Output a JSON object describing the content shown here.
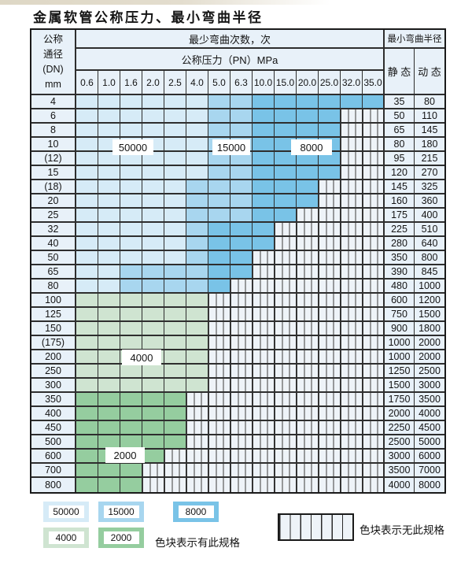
{
  "title": "金属软管公称压力、最小弯曲半径",
  "header": {
    "dn_lines": [
      "公称",
      "通径",
      "(DN)",
      "mm"
    ],
    "bend_cycles": "最少弯曲次数，次",
    "pressure": "公称压力（PN）MPa",
    "radius": "最小弯曲半径",
    "static": "静 态",
    "dynamic": "动 态",
    "pressures": [
      "0.6",
      "1.0",
      "1.6",
      "2.0",
      "2.5",
      "4.0",
      "5.0",
      "6.3",
      "10.0",
      "15.0",
      "20.0",
      "25.0",
      "32.0",
      "35.0"
    ]
  },
  "pattern_key": {
    "L": "50000",
    "M": "15000",
    "D": "8000",
    "G": "4000",
    "g": "2000",
    "X": "no-spec"
  },
  "spec_colors": {
    "50000": "#d6ebf7",
    "15000": "#a8d6ef",
    "8000": "#79c3e7",
    "4000": "#cfe4d1",
    "2000": "#95cd9f",
    "none_bg": "#eef3f8"
  },
  "rows": [
    {
      "dn": "4",
      "pattern": "LLLLLLMMDDDDDD",
      "static": "35",
      "dynamic": "80"
    },
    {
      "dn": "6",
      "pattern": "LLLLLLMMDDDDXX",
      "static": "50",
      "dynamic": "110"
    },
    {
      "dn": "8",
      "pattern": "LLLLLLMMDDDDXX",
      "static": "65",
      "dynamic": "145"
    },
    {
      "dn": "10",
      "pattern": "LLLLLLMMDDDDXX",
      "static": "80",
      "dynamic": "180"
    },
    {
      "dn": "(12)",
      "pattern": "LLLLLLMMDDDDXX",
      "static": "95",
      "dynamic": "215"
    },
    {
      "dn": "15",
      "pattern": "LLLLLLMMDDDDXX",
      "static": "120",
      "dynamic": "270"
    },
    {
      "dn": "(18)",
      "pattern": "LLLLLMMMDDDXXX",
      "static": "145",
      "dynamic": "325"
    },
    {
      "dn": "20",
      "pattern": "LLLLLMMMDDDXXX",
      "static": "160",
      "dynamic": "360"
    },
    {
      "dn": "25",
      "pattern": "LLLLLMMMDDXXXX",
      "static": "175",
      "dynamic": "400"
    },
    {
      "dn": "32",
      "pattern": "LLLLLMDDDXXXXX",
      "static": "225",
      "dynamic": "510"
    },
    {
      "dn": "40",
      "pattern": "LLLLLMDDDXXXXX",
      "static": "280",
      "dynamic": "640"
    },
    {
      "dn": "50",
      "pattern": "LLLLLMDDXXXXXX",
      "static": "350",
      "dynamic": "800"
    },
    {
      "dn": "65",
      "pattern": "LLMMMMDDXXXXXX",
      "static": "390",
      "dynamic": "845"
    },
    {
      "dn": "80",
      "pattern": "LLMMMMDXXXXXXX",
      "static": "480",
      "dynamic": "1000"
    },
    {
      "dn": "100",
      "pattern": "GGGGGGXXXXXXXX",
      "static": "600",
      "dynamic": "1200"
    },
    {
      "dn": "125",
      "pattern": "GGGGGGXXXXXXXX",
      "static": "750",
      "dynamic": "1500"
    },
    {
      "dn": "150",
      "pattern": "GGGGGGXXXXXXXX",
      "static": "900",
      "dynamic": "1800"
    },
    {
      "dn": "(175)",
      "pattern": "GGGGGGXXXXXXXX",
      "static": "1000",
      "dynamic": "2000"
    },
    {
      "dn": "200",
      "pattern": "GGGGGGXXXXXXXX",
      "static": "1000",
      "dynamic": "2000"
    },
    {
      "dn": "250",
      "pattern": "GGGGGGXXXXXXXX",
      "static": "1250",
      "dynamic": "2500"
    },
    {
      "dn": "300",
      "pattern": "GGGGGGXXXXXXXX",
      "static": "1500",
      "dynamic": "3000"
    },
    {
      "dn": "350",
      "pattern": "gggggXXXXXXXXX",
      "static": "1750",
      "dynamic": "3500"
    },
    {
      "dn": "400",
      "pattern": "gggggXXXXXXXXX",
      "static": "2000",
      "dynamic": "4000"
    },
    {
      "dn": "450",
      "pattern": "gggggXXXXXXXXX",
      "static": "2250",
      "dynamic": "4500"
    },
    {
      "dn": "500",
      "pattern": "gggggXXXXXXXXX",
      "static": "2500",
      "dynamic": "5000"
    },
    {
      "dn": "600",
      "pattern": "ggggXXXXXXXXXX",
      "static": "3000",
      "dynamic": "6000"
    },
    {
      "dn": "700",
      "pattern": "gggXXXXXXXXXXX",
      "static": "3500",
      "dynamic": "7000"
    },
    {
      "dn": "800",
      "pattern": "gggXXXXXXXXXXX",
      "static": "4000",
      "dynamic": "8000"
    }
  ],
  "overlays": {
    "l50000": "50000",
    "l15000": "15000",
    "l8000": "8000",
    "l4000": "4000",
    "l2000": "2000"
  },
  "legend": {
    "items": [
      {
        "label": "50000",
        "spec": "50000"
      },
      {
        "label": "15000",
        "spec": "15000"
      },
      {
        "label": "8000",
        "spec": "8000"
      },
      {
        "label": "4000",
        "spec": "4000"
      },
      {
        "label": "2000",
        "spec": "2000"
      }
    ],
    "has_spec_text": "色块表示有此规格",
    "no_spec_text": "色块表示无此规格"
  }
}
